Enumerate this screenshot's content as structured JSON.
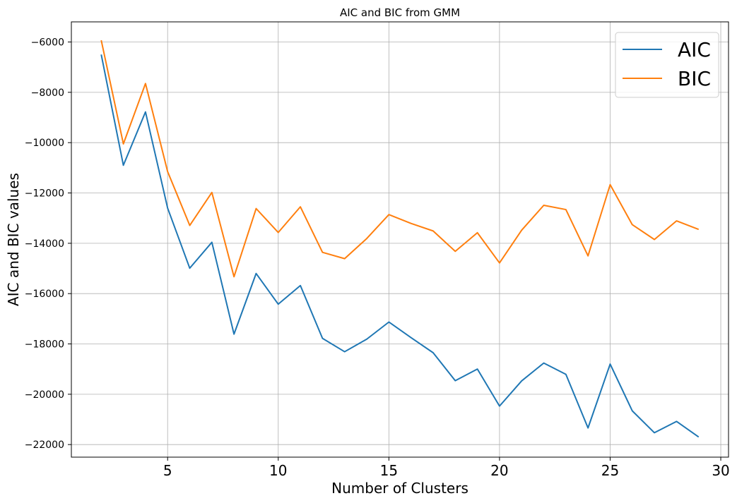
{
  "chart_data": {
    "type": "line",
    "title": "AIC and BIC from GMM",
    "xlabel": "Number of Clusters",
    "ylabel": "AIC and BIC values",
    "xlim": [
      0.65,
      30.35
    ],
    "ylim": [
      -22500,
      -5200
    ],
    "xticks": [
      5,
      10,
      15,
      20,
      25,
      30
    ],
    "yticks": [
      -22000,
      -20000,
      -18000,
      -16000,
      -14000,
      -12000,
      -10000,
      -8000,
      -6000
    ],
    "grid": true,
    "legend_position": "top-right",
    "x": [
      2,
      3,
      4,
      5,
      6,
      7,
      8,
      9,
      10,
      11,
      12,
      13,
      14,
      15,
      16,
      17,
      18,
      19,
      20,
      21,
      22,
      23,
      24,
      25,
      26,
      27,
      28,
      29
    ],
    "series": [
      {
        "name": "AIC",
        "color": "#1f77b4",
        "values": [
          -6500,
          -10900,
          -8780,
          -12600,
          -14990,
          -13960,
          -17610,
          -15200,
          -16420,
          -15680,
          -17780,
          -18310,
          -17810,
          -17130,
          -17750,
          -18350,
          -19460,
          -19000,
          -20470,
          -19470,
          -18760,
          -19210,
          -21340,
          -18800,
          -20660,
          -21530,
          -21080,
          -21700
        ]
      },
      {
        "name": "BIC",
        "color": "#ff7f0e",
        "values": [
          -5930,
          -10050,
          -7650,
          -11150,
          -13290,
          -11980,
          -15330,
          -12620,
          -13570,
          -12550,
          -14360,
          -14610,
          -13810,
          -12860,
          -13210,
          -13510,
          -14320,
          -13580,
          -14780,
          -13480,
          -12490,
          -12660,
          -14500,
          -11670,
          -13260,
          -13850,
          -13110,
          -13450
        ]
      }
    ]
  }
}
